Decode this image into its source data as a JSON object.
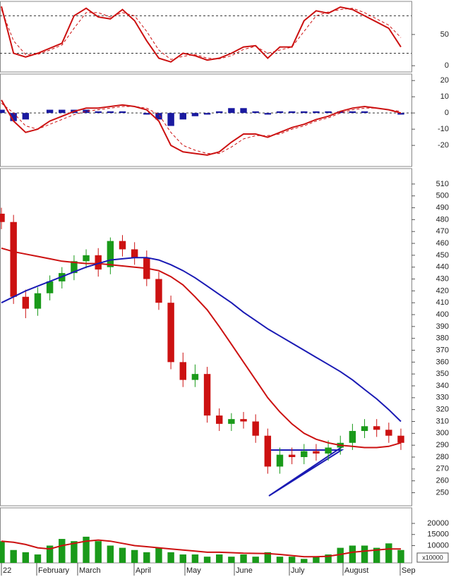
{
  "chart_data": [
    {
      "type": "line",
      "ylim": [
        -10,
        103
      ],
      "yticks": [
        0,
        50
      ],
      "levels": [
        20,
        80
      ],
      "series": [
        {
          "color": "#cc1111",
          "style": "line",
          "values": [
            95,
            20,
            14,
            20,
            28,
            36,
            80,
            92,
            78,
            75,
            90,
            72,
            40,
            12,
            6,
            20,
            16,
            9,
            12,
            20,
            30,
            32,
            12,
            30,
            30,
            72,
            88,
            84,
            94,
            90,
            80,
            70,
            60,
            30
          ]
        },
        {
          "color": "#cc1111",
          "style": "dashed",
          "values": [
            90,
            40,
            18,
            18,
            25,
            33,
            60,
            85,
            85,
            78,
            85,
            80,
            55,
            25,
            10,
            15,
            18,
            12,
            11,
            16,
            26,
            31,
            20,
            25,
            30,
            55,
            80,
            86,
            90,
            92,
            85,
            75,
            65,
            45
          ]
        }
      ]
    },
    {
      "type": "line",
      "ylim": [
        -33,
        24
      ],
      "yticks": [
        -20,
        -10,
        0,
        10,
        20
      ],
      "levels": [
        0
      ],
      "series": [
        {
          "color": "#1a1aa0",
          "style": "bar",
          "values": [
            2,
            -5,
            -4,
            0,
            2,
            2,
            2,
            2,
            1,
            1,
            1,
            0,
            -1,
            -4,
            -8,
            -4,
            -2,
            -1,
            1,
            3,
            3,
            1,
            -1,
            1,
            1,
            1,
            1,
            1,
            1,
            1,
            1,
            0,
            0,
            -1
          ]
        },
        {
          "color": "#cc1111",
          "style": "line",
          "values": [
            8,
            -5,
            -12,
            -10,
            -5,
            -2,
            1,
            3,
            3,
            4,
            5,
            4,
            2,
            -5,
            -20,
            -24,
            -25,
            -26,
            -24,
            -18,
            -13,
            -13,
            -15,
            -12,
            -9,
            -7,
            -4,
            -2,
            1,
            3,
            4,
            3,
            2,
            0
          ]
        },
        {
          "color": "#cc1111",
          "style": "dashed",
          "values": [
            6,
            0,
            -8,
            -10,
            -7,
            -4,
            -1,
            1,
            2,
            3,
            4,
            4,
            3,
            -1,
            -12,
            -20,
            -23,
            -25,
            -25,
            -21,
            -16,
            -14,
            -14,
            -13,
            -10,
            -8,
            -5,
            -3,
            0,
            2,
            3,
            3,
            2,
            1
          ]
        }
      ]
    },
    {
      "type": "candlestick",
      "ylim": [
        239,
        523
      ],
      "yticks": [
        250,
        260,
        270,
        280,
        290,
        300,
        310,
        320,
        330,
        340,
        350,
        360,
        370,
        380,
        390,
        400,
        410,
        420,
        430,
        440,
        450,
        460,
        470,
        480,
        490,
        500,
        510
      ],
      "up_color": "#1a9a1a",
      "down_color": "#cc1111",
      "open": [
        485,
        478,
        415,
        405,
        418,
        428,
        435,
        445,
        450,
        440,
        462,
        455,
        448,
        430,
        410,
        360,
        345,
        350,
        315,
        308,
        312,
        310,
        298,
        272,
        282,
        280,
        285,
        283,
        288,
        292,
        302,
        306,
        303,
        298
      ],
      "high": [
        490,
        484,
        421,
        423,
        433,
        440,
        450,
        455,
        456,
        465,
        467,
        461,
        454,
        436,
        416,
        368,
        358,
        356,
        321,
        317,
        318,
        316,
        304,
        288,
        288,
        291,
        291,
        294,
        298,
        308,
        312,
        312,
        309,
        304
      ],
      "low": [
        472,
        409,
        397,
        399,
        412,
        422,
        429,
        439,
        432,
        434,
        449,
        442,
        424,
        404,
        354,
        339,
        339,
        309,
        302,
        302,
        304,
        292,
        266,
        266,
        274,
        274,
        277,
        277,
        282,
        286,
        296,
        297,
        292,
        286
      ],
      "close": [
        478,
        415,
        405,
        418,
        428,
        435,
        445,
        450,
        438,
        462,
        455,
        448,
        430,
        410,
        360,
        345,
        350,
        315,
        308,
        312,
        310,
        298,
        272,
        282,
        280,
        285,
        283,
        288,
        292,
        302,
        306,
        303,
        298,
        292
      ],
      "series": [
        {
          "color": "#cc1111",
          "style": "line",
          "values": [
            456,
            453,
            451,
            449,
            447,
            445,
            444,
            443,
            443,
            442,
            441,
            440,
            439,
            437,
            432,
            425,
            415,
            404,
            390,
            375,
            360,
            345,
            330,
            318,
            308,
            300,
            295,
            292,
            290,
            289,
            288,
            288,
            289,
            292
          ]
        },
        {
          "color": "#1a1ab4",
          "style": "line",
          "values": [
            410,
            415,
            420,
            424,
            428,
            432,
            436,
            440,
            443,
            446,
            447,
            448,
            448,
            446,
            442,
            437,
            431,
            424,
            417,
            410,
            402,
            395,
            388,
            382,
            376,
            370,
            364,
            358,
            352,
            345,
            337,
            329,
            320,
            310
          ]
        }
      ]
    },
    {
      "type": "bar",
      "ylim": [
        2200,
        27000
      ],
      "yticks": [
        10000,
        15000,
        20000
      ],
      "unit_label": "x10000",
      "color": "#1a9a1a",
      "values": [
        12000,
        8000,
        7000,
        6000,
        10000,
        13000,
        12000,
        14000,
        12000,
        10000,
        9000,
        8000,
        7000,
        9000,
        7000,
        6000,
        6000,
        5000,
        6000,
        5000,
        6000,
        5000,
        7000,
        5000,
        5000,
        4000,
        5000,
        6000,
        9000,
        10000,
        10000,
        9000,
        11000,
        8000
      ],
      "series": [
        {
          "color": "#cc1111",
          "style": "line",
          "values": [
            12000,
            11500,
            10500,
            9000,
            8500,
            10000,
            11000,
            12000,
            12500,
            12000,
            11000,
            10000,
            9500,
            9000,
            8500,
            8000,
            7500,
            7000,
            7000,
            6800,
            6600,
            6500,
            6400,
            6000,
            5500,
            5000,
            5000,
            5200,
            6000,
            7000,
            7500,
            8000,
            8500,
            8500
          ]
        }
      ]
    }
  ],
  "x_axis": {
    "labels": [
      "22",
      "February",
      "March",
      "April",
      "May",
      "June",
      "July",
      "August",
      "Sep"
    ]
  }
}
